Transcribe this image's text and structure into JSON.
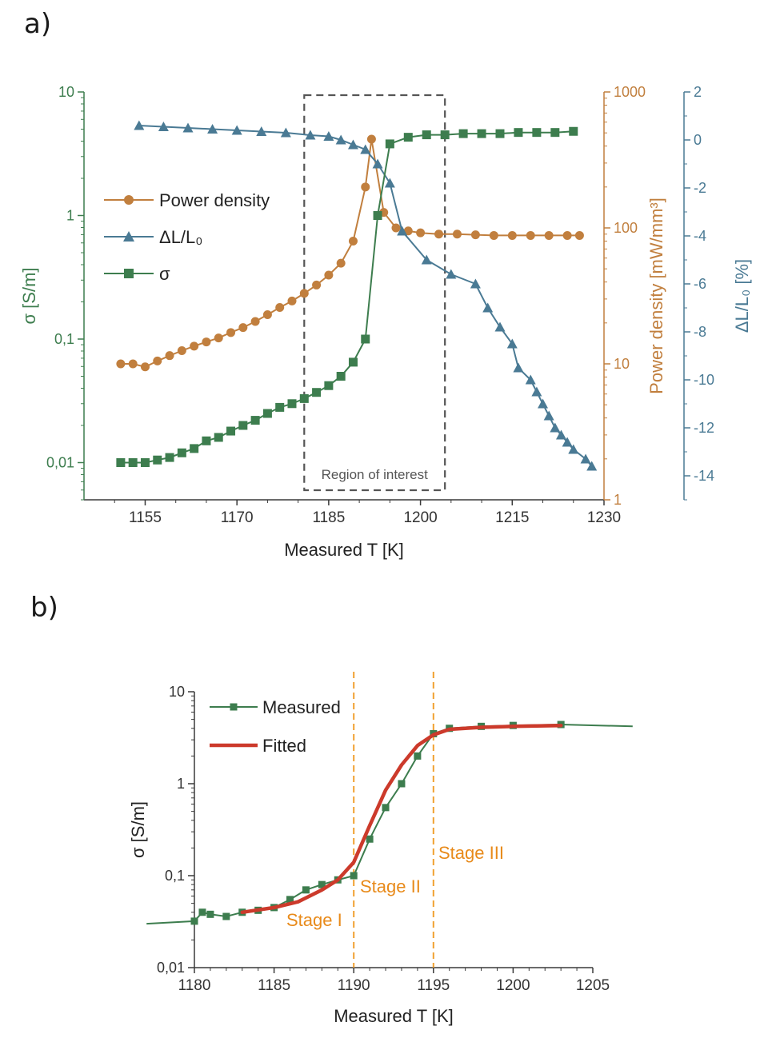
{
  "panels": {
    "a": "a)",
    "b": "b)"
  },
  "colors": {
    "sigma": "#3d7d4e",
    "power": "#c17f3e",
    "dl": "#4a7a94",
    "axis": "#3a3a3a",
    "fitted": "#cc3a2b",
    "stage": "#f0a030",
    "stage_text": "#e88a1a",
    "box": "#555555"
  },
  "chart_data": [
    {
      "id": "a",
      "type": "line",
      "xlabel": "Measured T [K]",
      "x_ticks": [
        "1155",
        "1170",
        "1185",
        "1200",
        "1215",
        "1230"
      ],
      "xlim": [
        1145,
        1230
      ],
      "left_axis": {
        "label": "σ [S/m]",
        "scale": "log",
        "ylim": [
          0.005,
          10
        ],
        "ticks": [
          "10",
          "1",
          "0,1",
          "0,01"
        ]
      },
      "right_axis_1": {
        "label": "Power density [mW/mm³]",
        "scale": "log",
        "ylim": [
          1,
          1000
        ],
        "ticks": [
          "1000",
          "100",
          "10",
          "1"
        ]
      },
      "right_axis_2": {
        "label": "ΔL/L₀ [%]",
        "scale": "linear",
        "ylim": [
          -15,
          2
        ],
        "ticks": [
          "2",
          "0",
          "-2",
          "-4",
          "-6",
          "-8",
          "-10",
          "-12",
          "-14"
        ]
      },
      "legend": [
        "Power density",
        "ΔL/L₀",
        "σ"
      ],
      "annotation": "Region of interest",
      "region_of_interest": [
        1181,
        1204
      ],
      "series": [
        {
          "name": "Power density",
          "axis": "right_1",
          "x": [
            1151,
            1153,
            1155,
            1157,
            1159,
            1161,
            1163,
            1165,
            1167,
            1169,
            1171,
            1173,
            1175,
            1177,
            1179,
            1181,
            1183,
            1185,
            1187,
            1189,
            1191,
            1192,
            1194,
            1196,
            1198,
            1200,
            1203,
            1206,
            1209,
            1212,
            1215,
            1218,
            1221,
            1224,
            1226
          ],
          "y": [
            10,
            10,
            9.5,
            10.5,
            11.5,
            12.5,
            13.5,
            14.5,
            15.5,
            17,
            18.5,
            20.5,
            23,
            26,
            29,
            33,
            38,
            45,
            55,
            80,
            200,
            450,
            130,
            100,
            95,
            92,
            90,
            90,
            89,
            88,
            88,
            88,
            88,
            88,
            88
          ]
        },
        {
          "name": "ΔL/L₀",
          "axis": "right_2",
          "x": [
            1154,
            1158,
            1162,
            1166,
            1170,
            1174,
            1178,
            1182,
            1185,
            1187,
            1189,
            1191,
            1193,
            1195,
            1197,
            1201,
            1205,
            1209,
            1211,
            1213,
            1215,
            1216,
            1218,
            1219,
            1220,
            1221,
            1222,
            1223,
            1224,
            1225,
            1227,
            1228
          ],
          "y": [
            0.6,
            0.55,
            0.5,
            0.45,
            0.4,
            0.35,
            0.3,
            0.2,
            0.15,
            0.0,
            -0.2,
            -0.4,
            -1.0,
            -1.8,
            -3.8,
            -5.0,
            -5.6,
            -6.0,
            -7.0,
            -7.8,
            -8.5,
            -9.5,
            -10.0,
            -10.5,
            -11.0,
            -11.5,
            -12.0,
            -12.3,
            -12.6,
            -12.9,
            -13.3,
            -13.6
          ]
        },
        {
          "name": "σ",
          "axis": "left",
          "x": [
            1151,
            1153,
            1155,
            1157,
            1159,
            1161,
            1163,
            1165,
            1167,
            1169,
            1171,
            1173,
            1175,
            1177,
            1179,
            1181,
            1183,
            1185,
            1187,
            1189,
            1191,
            1193,
            1195,
            1198,
            1201,
            1204,
            1207,
            1210,
            1213,
            1216,
            1219,
            1222,
            1225
          ],
          "y": [
            0.01,
            0.01,
            0.01,
            0.0105,
            0.011,
            0.012,
            0.013,
            0.015,
            0.016,
            0.018,
            0.02,
            0.022,
            0.025,
            0.028,
            0.03,
            0.033,
            0.037,
            0.042,
            0.05,
            0.065,
            0.1,
            1.0,
            3.8,
            4.3,
            4.5,
            4.5,
            4.6,
            4.6,
            4.6,
            4.7,
            4.7,
            4.7,
            4.8
          ]
        }
      ]
    },
    {
      "id": "b",
      "type": "line",
      "xlabel": "Measured T [K]",
      "ylabel": "σ [S/m]",
      "x_ticks": [
        "1180",
        "1185",
        "1190",
        "1195",
        "1200",
        "1205"
      ],
      "xlim": [
        1180,
        1205
      ],
      "y_scale": "log",
      "ylim": [
        0.01,
        10
      ],
      "y_ticks": [
        "10",
        "1",
        "0,1",
        "0,01"
      ],
      "legend": [
        "Measured",
        "Fitted"
      ],
      "stages": [
        {
          "label": "Stage I",
          "x": 1190
        },
        {
          "label": "Stage II",
          "x": 1195
        },
        {
          "label": "Stage III"
        }
      ],
      "series": [
        {
          "name": "Measured",
          "x": [
            1177,
            1180,
            1180.5,
            1181,
            1182,
            1183,
            1184,
            1185,
            1186,
            1187,
            1188,
            1189,
            1190,
            1191,
            1192,
            1193,
            1194,
            1195,
            1196,
            1198,
            1200,
            1203,
            1207.5
          ],
          "y": [
            0.03,
            0.032,
            0.04,
            0.038,
            0.036,
            0.04,
            0.042,
            0.045,
            0.055,
            0.07,
            0.08,
            0.09,
            0.1,
            0.25,
            0.55,
            1.0,
            2.0,
            3.5,
            4.0,
            4.2,
            4.3,
            4.4,
            4.2
          ]
        },
        {
          "name": "Fitted",
          "x": [
            1183,
            1185,
            1186.5,
            1188,
            1189,
            1190,
            1191,
            1192,
            1193,
            1194,
            1195,
            1196,
            1198,
            1200,
            1203
          ],
          "y": [
            0.04,
            0.045,
            0.052,
            0.07,
            0.09,
            0.14,
            0.35,
            0.85,
            1.6,
            2.6,
            3.4,
            3.9,
            4.1,
            4.2,
            4.3
          ]
        }
      ]
    }
  ]
}
